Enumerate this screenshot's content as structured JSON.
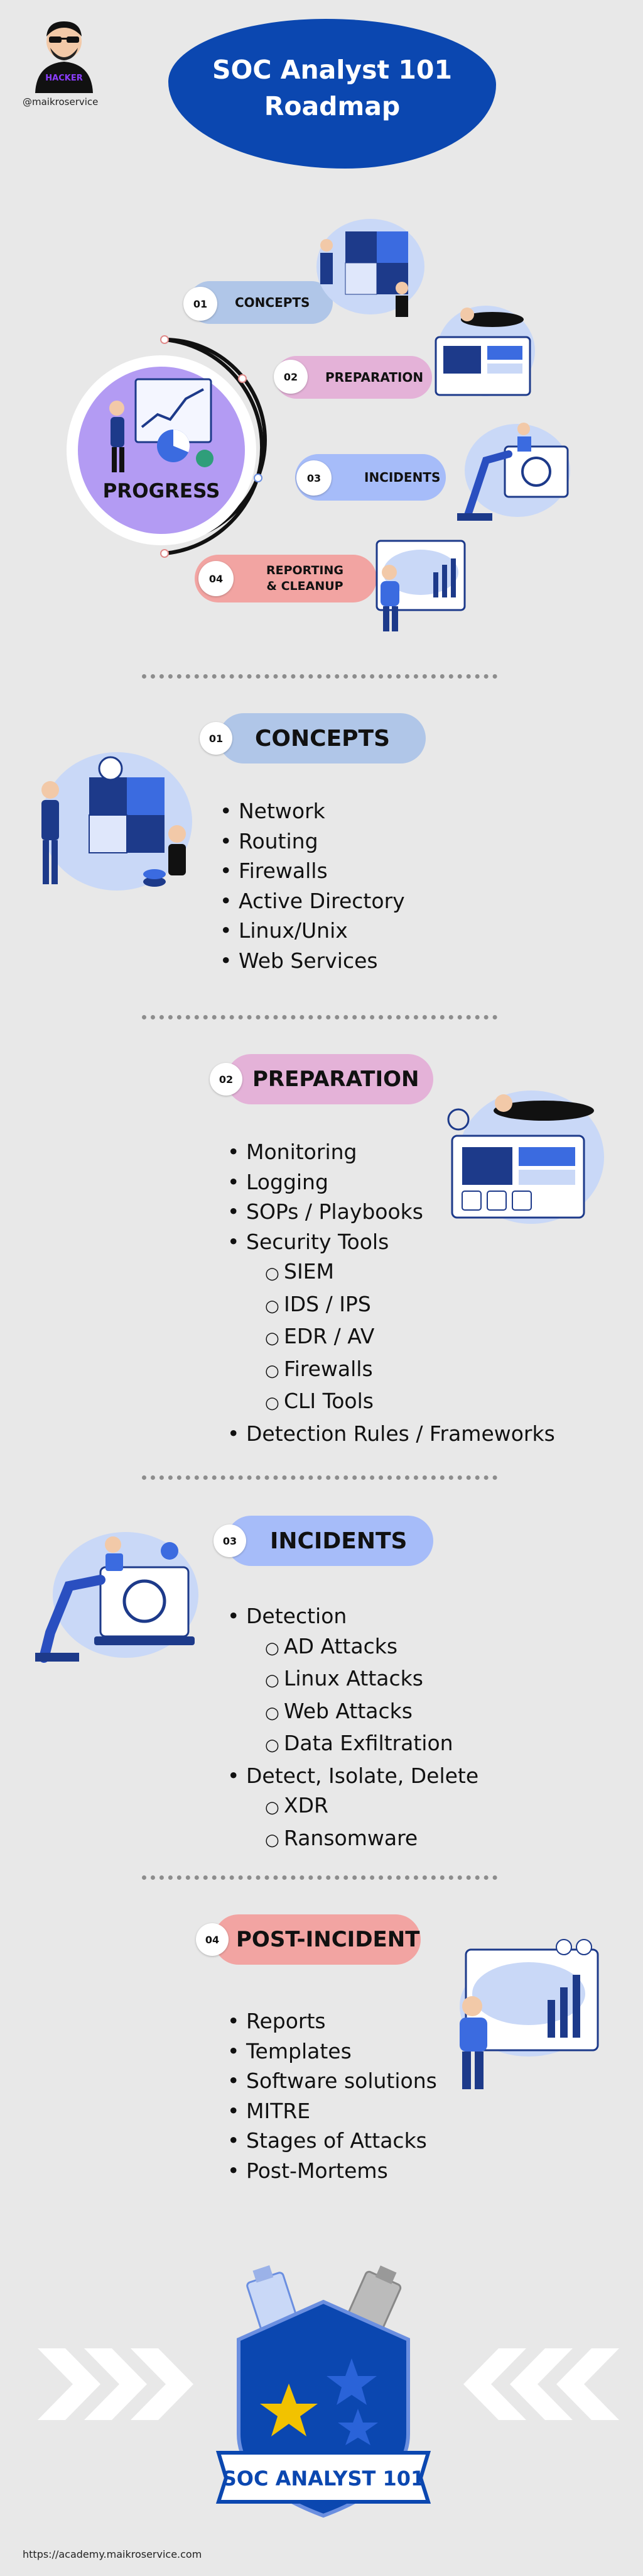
{
  "header": {
    "title_line1": "SOC Analyst 101",
    "title_line2": "Roadmap",
    "handle": "@maikroservice",
    "avatar_text": "HACKER"
  },
  "hub": {
    "label": "PROGRESS"
  },
  "roadmap": [
    {
      "num": "01",
      "label": "CONCEPTS"
    },
    {
      "num": "02",
      "label": "PREPARATION"
    },
    {
      "num": "03",
      "label": "INCIDENTS"
    },
    {
      "num": "04",
      "label_line1": "REPORTING",
      "label_line2": "& CLEANUP"
    }
  ],
  "sections": {
    "concepts": {
      "num": "01",
      "title": "CONCEPTS",
      "items": [
        "Network",
        "Routing",
        "Firewalls",
        "Active Directory",
        "Linux/Unix",
        "Web Services"
      ]
    },
    "preparation": {
      "num": "02",
      "title": "PREPARATION",
      "items": [
        "Monitoring",
        "Logging",
        "SOPs / Playbooks",
        "Security Tools"
      ],
      "tools": [
        "SIEM",
        "IDS / IPS",
        "EDR / AV",
        "Firewalls",
        "CLI Tools"
      ],
      "last": "Detection Rules / Frameworks"
    },
    "incidents": {
      "num": "03",
      "title": "INCIDENTS",
      "detection": "Detection",
      "detection_items": [
        "AD Attacks",
        "Linux Attacks",
        "Web Attacks",
        "Data Exfiltration"
      ],
      "response": "Detect, Isolate, Delete",
      "response_items": [
        "XDR",
        "Ransomware"
      ]
    },
    "post_incident": {
      "num": "04",
      "title": "POST-INCIDENT",
      "items": [
        "Reports",
        "Templates",
        "Software solutions",
        "MITRE",
        "Stages of Attacks",
        "Post-Mortems"
      ]
    }
  },
  "badge": {
    "text": "SOC ANALYST 101"
  },
  "footer": {
    "url": "https://academy.maikroservice.com"
  },
  "colors": {
    "background": "#e8e8e8",
    "brand_blue": "#0b47b0",
    "concepts": "#b0c6e8",
    "preparation": "#e4b2d8",
    "incidents": "#a6bcf9",
    "post_incident": "#f2a4a2",
    "progress_ring": "#b39bf3"
  }
}
